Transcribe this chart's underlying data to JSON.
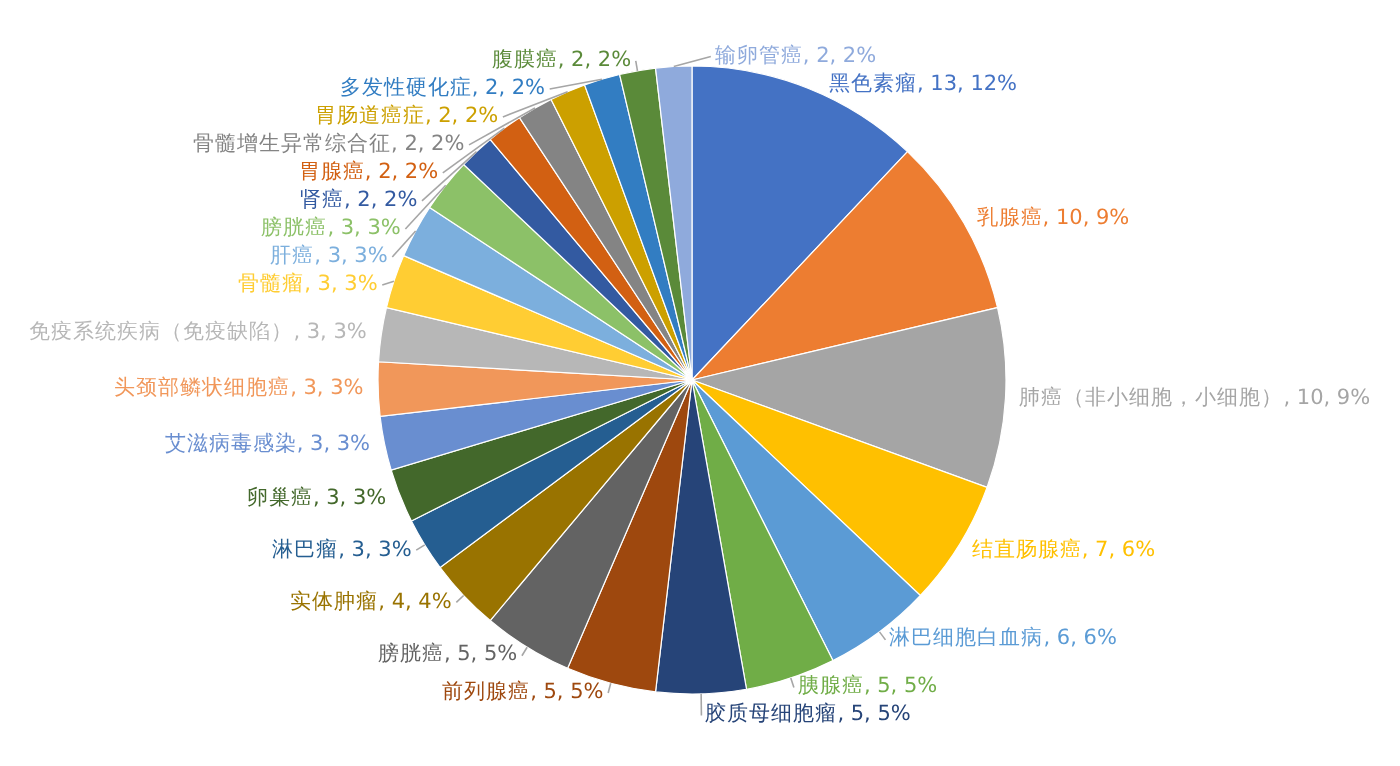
{
  "chart_data": {
    "type": "pie",
    "categories": [
      "黑色素瘤",
      "乳腺癌",
      "肺癌（非小细胞，小细胞）",
      "结直肠腺癌",
      "淋巴细胞白血病",
      "胰腺癌",
      "胶质母细胞瘤",
      "前列腺癌",
      "膀胱癌",
      "实体肿瘤",
      "淋巴瘤",
      "卵巢癌",
      "艾滋病毒感染",
      "头颈部鳞状细胞癌",
      "免疫系统疾病（免疫缺陷）",
      "骨髓瘤",
      "肝癌",
      "膀胱癌",
      "肾癌",
      "胃腺癌",
      "骨髓增生异常综合征",
      "胃肠道癌症",
      "多发性硬化症",
      "腹膜癌",
      "输卵管癌"
    ],
    "values": [
      13,
      10,
      10,
      7,
      6,
      5,
      5,
      5,
      5,
      4,
      3,
      3,
      3,
      3,
      3,
      3,
      3,
      3,
      2,
      2,
      2,
      2,
      2,
      2,
      2
    ],
    "value_labels": [
      "13, 12%",
      "10, 9%",
      "10, 9%",
      "7, 6%",
      "6, 6%",
      "5, 5%",
      "5, 5%",
      "5, 5%",
      "5, 5%",
      "4, 4%",
      "3, 3%",
      "3, 3%",
      "3, 3%",
      "3, 3%",
      "3, 3%",
      "3, 3%",
      "3, 3%",
      "3, 3%",
      "2, 2%",
      "2, 2%",
      "2, 2%",
      "2, 2%",
      "2, 2%",
      "2, 2%",
      "2, 2%"
    ],
    "colors": [
      "#4472c4",
      "#ed7d31",
      "#a5a5a5",
      "#ffc000",
      "#5b9bd5",
      "#70ad47",
      "#264478",
      "#9e480e",
      "#636363",
      "#997300",
      "#255e91",
      "#43682b",
      "#698ed0",
      "#f1975a",
      "#b7b7b7",
      "#ffcd33",
      "#7cafdd",
      "#8cc168",
      "#335aa1",
      "#d26012",
      "#848484",
      "#cca000",
      "#327dc2",
      "#5a8a39",
      "#8faadc"
    ]
  }
}
